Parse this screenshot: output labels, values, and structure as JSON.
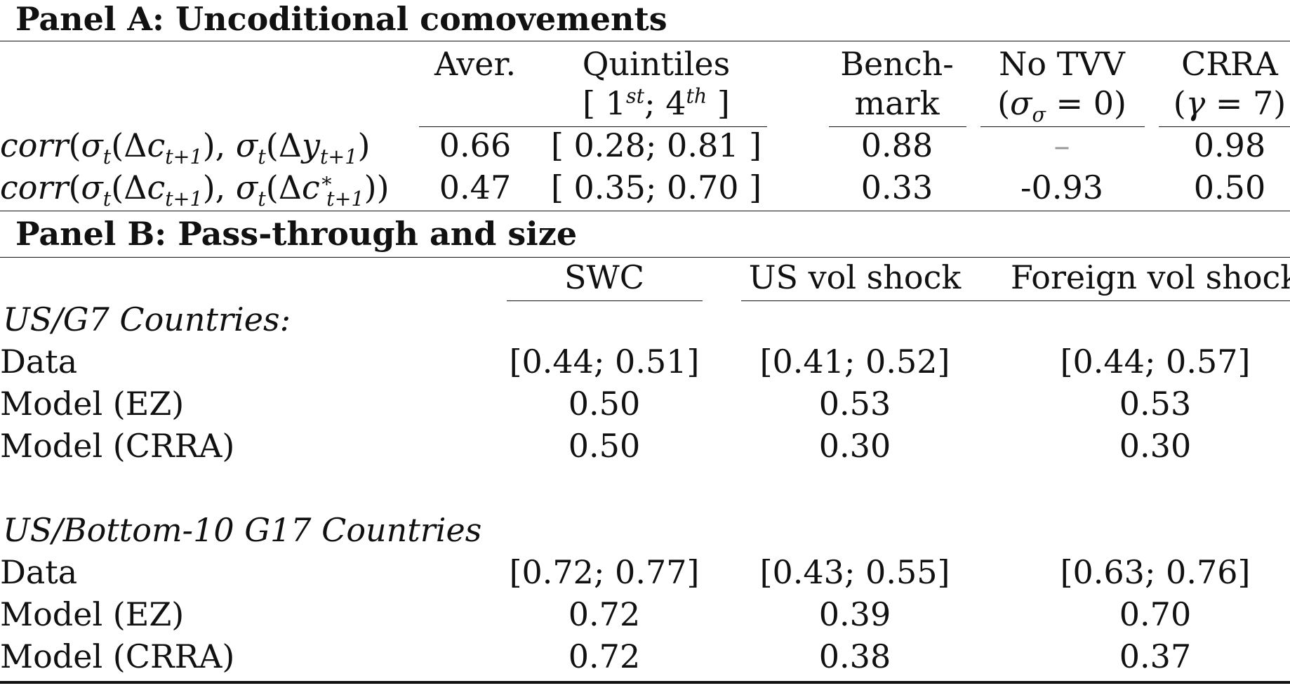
{
  "panel_a": {
    "title": "Panel A: Uncoditional comovements",
    "columns": {
      "aver": "Aver.",
      "quintiles": "Quintiles",
      "quintiles_sub": "[ 1st; 4th ]",
      "benchmark_1": "Bench-",
      "benchmark_2": "mark",
      "notvv_1": "No TVV",
      "notvv_2": "(σσ = 0)",
      "crra_1": "CRRA",
      "crra_2": "(γ = 7)"
    },
    "rows": [
      {
        "label": "corr(σt(Δct+1), σt(Δyt+1)",
        "aver": "0.66",
        "quintiles": "[ 0.28; 0.81 ]",
        "benchmark": "0.88",
        "notvv": "–",
        "crra": "0.98"
      },
      {
        "label": "corr(σt(Δct+1), σt(Δc*t+1))",
        "aver": "0.47",
        "quintiles": "[ 0.35; 0.70 ]",
        "benchmark": "0.33",
        "notvv": "-0.93",
        "crra": "0.50"
      }
    ]
  },
  "panel_b": {
    "title": "Panel B: Pass-through and size",
    "columns": {
      "swc": "SWC",
      "us_vol": "US vol shock",
      "foreign_vol": "Foreign vol shock"
    },
    "groups": [
      {
        "heading": "US/G7 Countries:",
        "rows": [
          {
            "label": "Data",
            "swc": "[0.44; 0.51]",
            "us_vol": "[0.41; 0.52]",
            "foreign_vol": "[0.44; 0.57]"
          },
          {
            "label": "Model (EZ)",
            "swc": "0.50",
            "us_vol": "0.53",
            "foreign_vol": "0.53"
          },
          {
            "label": "Model (CRRA)",
            "swc": "0.50",
            "us_vol": "0.30",
            "foreign_vol": "0.30"
          }
        ]
      },
      {
        "heading": "US/Bottom-10 G17 Countries",
        "rows": [
          {
            "label": "Data",
            "swc": "[0.72; 0.77]",
            "us_vol": "[0.43; 0.55]",
            "foreign_vol": "[0.63; 0.76]"
          },
          {
            "label": "Model (EZ)",
            "swc": "0.72",
            "us_vol": "0.39",
            "foreign_vol": "0.70"
          },
          {
            "label": "Model (CRRA)",
            "swc": "0.72",
            "us_vol": "0.38",
            "foreign_vol": "0.37"
          }
        ]
      }
    ]
  }
}
